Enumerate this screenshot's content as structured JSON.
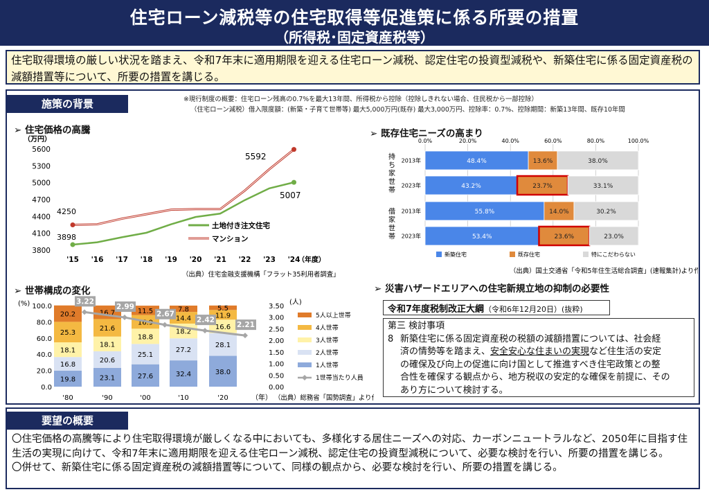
{
  "header": {
    "title": "住宅ローン減税等の住宅取得等促進策に係る所要の措置",
    "subtitle": "（所得税･固定資産税等）"
  },
  "summary": "住宅取得環境の厳しい状況を踏まえ、令和7年末に適用期限を迎える住宅ローン減税、認定住宅の投資型減税や、新築住宅に係る固定資産税の減額措置等について、所要の措置を講じる。",
  "background": {
    "tab": "施策の背景",
    "note_line1": "※現行制度の概要：住宅ローン残高の0.7%を最大13年間、所得税から控除（控除しきれない場合、住民税から一部控除）",
    "note_line2": "（住宅ローン減税）借入限度額：(新築・子育て世帯等) 最大5,000万円(既存) 最大3,000万円、控除率：0.7%、控除期間：新築13年間、既存10年間"
  },
  "price": {
    "heading": "住宅価格の高騰",
    "unit": "（万円）",
    "year_label": "（年度）",
    "source": "（出典）住宅金融支援機構「フラット35利用者調査」",
    "chart_data": {
      "type": "line",
      "x": [
        "'15",
        "'16",
        "'17",
        "'18",
        "'19",
        "'20",
        "'21",
        "'22",
        "'23",
        "'24"
      ],
      "ylim": [
        3800,
        5600
      ],
      "yticks": [
        "5600",
        "5300",
        "5000",
        "4700",
        "4400",
        "4100",
        "3800"
      ],
      "series": [
        {
          "name": "土地付き注文住宅",
          "color": "#70ad47",
          "values": [
            3898,
            3940,
            4030,
            4110,
            4260,
            4390,
            4450,
            4690,
            4900,
            5007
          ]
        },
        {
          "name": "マンション",
          "color": "#c0392b",
          "values": [
            4250,
            4260,
            4360,
            4440,
            4520,
            4530,
            4530,
            4860,
            5240,
            5592
          ]
        }
      ],
      "labels": {
        "green_start": "3898",
        "red_start": "4250",
        "red_end": "5592",
        "green_end": "5007"
      }
    }
  },
  "household": {
    "heading": "世帯構成の変化",
    "left_unit": "(%)",
    "right_unit": "(人)",
    "year_label": "（年）",
    "source": "（出典）総務省「国勢調査」より作成",
    "chart_data": {
      "type": "bar",
      "stacked": true,
      "categories": [
        "'80",
        "'90",
        "'00",
        "'10",
        "'20"
      ],
      "left_ticks": [
        "100.0",
        "80.0",
        "60.0",
        "40.0",
        "20.0",
        "0.0"
      ],
      "right_ticks": [
        "3.50",
        "3.00",
        "2.50",
        "2.00",
        "1.50",
        "1.00",
        "0.50",
        "0.00"
      ],
      "ylim": [
        0,
        100
      ],
      "y2lim": [
        0,
        3.5
      ],
      "series": [
        {
          "name": "1人世帯",
          "color": "#8eaadb",
          "values": [
            "19.8",
            "23.1",
            "27.6",
            "32.4",
            "38.0"
          ]
        },
        {
          "name": "2人世帯",
          "color": "#d9e2f3",
          "values": [
            "16.8",
            "20.6",
            "25.1",
            "27.2",
            "28.1"
          ]
        },
        {
          "name": "3人世帯",
          "color": "#fff2a8",
          "values": [
            "18.1",
            "18.1",
            "18.8",
            "18.2",
            "16.6"
          ]
        },
        {
          "name": "4人世帯",
          "color": "#f4b942",
          "values": [
            "25.3",
            "21.6",
            "16.9",
            "14.4",
            "11.9"
          ]
        },
        {
          "name": "5人以上世帯",
          "color": "#e07b2a",
          "values": [
            "20.2",
            "16.7",
            "11.5",
            "7.8",
            "5.5"
          ]
        }
      ],
      "line": {
        "name": "1世帯当たり人員",
        "color": "#a6a6a6",
        "values": [
          "3.22",
          "2.99",
          "2.67",
          "2.42",
          "2.21"
        ]
      }
    }
  },
  "needs": {
    "heading": "既存住宅ニーズの高まり",
    "source": "（出典）国土交通省「令和5年住生活総合調査」(速報集計)より作成",
    "chart_data": {
      "type": "bar",
      "orientation": "horizontal",
      "stacked": true,
      "xticks": [
        "0.0%",
        "20.0%",
        "40.0%",
        "60.0%",
        "80.0%",
        "100.0%"
      ],
      "groups": [
        {
          "label": "持ち家世帯",
          "rows": [
            {
              "year": "2013年",
              "values": [
                "48.4%",
                "13.6%",
                "38.0%"
              ]
            },
            {
              "year": "2023年",
              "values": [
                "43.2%",
                "23.7%",
                "33.1%"
              ]
            }
          ]
        },
        {
          "label": "借家世帯",
          "rows": [
            {
              "year": "2013年",
              "values": [
                "55.8%",
                "14.0%",
                "30.2%"
              ]
            },
            {
              "year": "2023年",
              "values": [
                "53.4%",
                "23.6%",
                "23.0%"
              ]
            }
          ]
        }
      ],
      "series": [
        {
          "name": "新築住宅",
          "color": "#4a86e8"
        },
        {
          "name": "既存住宅",
          "color": "#e08a3c"
        },
        {
          "name": "特にこだわらない",
          "color": "#d9d9d9"
        }
      ]
    }
  },
  "hazard": {
    "heading": "災害ハザードエリアへの住宅新規立地の抑制の必要性",
    "box_title": "令和7年度税制改正大綱",
    "box_title_small": "（令和6年12月20日）(抜粋)",
    "section": "第三 検討事項",
    "item_no": "8",
    "lines": [
      "新築住宅に係る固定資産税の税額の減額措置については、社会経",
      "済の情勢等を踏まえ、安全安心な住まいの実現など住生活の安定",
      "の確保及び向上の促進に向け国として推進すべき住宅政策との整",
      "合性を確保する観点から、地方税収の安定的な確保を前提に、その",
      "あり方について検討する。"
    ]
  },
  "request": {
    "tab": "要望の概要",
    "para1": "〇住宅価格の高騰等により住宅取得環境が厳しくなる中においても、多様化する居住ニーズへの対応、カーボンニュートラルなど、2050年に目指す住生活の実現に向けて、令和7年末に適用期限を迎える住宅ローン減税、認定住宅の投資型減税について、必要な検討を行い、所要の措置を講じる。",
    "para2": "〇併せて、新築住宅に係る固定資産税の減額措置等について、同様の観点から、必要な検討を行い、所要の措置を講じる。"
  }
}
